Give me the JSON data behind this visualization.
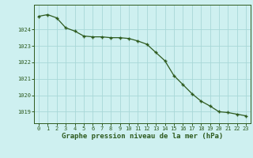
{
  "x": [
    0,
    1,
    2,
    3,
    4,
    5,
    6,
    7,
    8,
    9,
    10,
    11,
    12,
    13,
    14,
    15,
    16,
    17,
    18,
    19,
    20,
    21,
    22,
    23
  ],
  "y": [
    1024.8,
    1024.9,
    1024.7,
    1024.1,
    1023.9,
    1023.6,
    1023.55,
    1023.55,
    1023.5,
    1023.5,
    1023.45,
    1023.3,
    1023.1,
    1022.6,
    1022.1,
    1021.2,
    1020.65,
    1020.1,
    1019.65,
    1019.35,
    1019.0,
    1018.95,
    1018.85,
    1018.75
  ],
  "line_color": "#2d5a1e",
  "marker": "+",
  "markersize": 3.5,
  "linewidth": 0.9,
  "bg_color": "#cef0f0",
  "grid_color": "#a8d8d8",
  "ylabel_ticks": [
    1019,
    1020,
    1021,
    1022,
    1023,
    1024
  ],
  "xticks": [
    0,
    1,
    2,
    3,
    4,
    5,
    6,
    7,
    8,
    9,
    10,
    11,
    12,
    13,
    14,
    15,
    16,
    17,
    18,
    19,
    20,
    21,
    22,
    23
  ],
  "ylim": [
    1018.3,
    1025.5
  ],
  "xlim": [
    -0.5,
    23.5
  ],
  "xlabel": "Graphe pression niveau de la mer (hPa)",
  "xlabel_color": "#2d5a1e",
  "tick_color": "#2d5a1e",
  "axis_color": "#2d5a1e",
  "tick_fontsize": 5.0,
  "xlabel_fontsize": 6.5
}
